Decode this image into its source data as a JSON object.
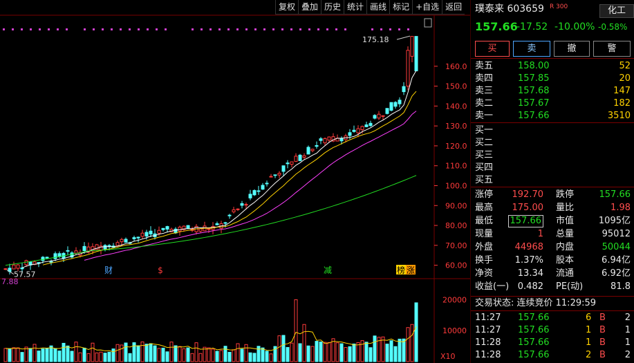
{
  "toolbar": [
    "复权",
    "叠加",
    "历史",
    "统计",
    "画线",
    "标记",
    "+自选",
    "返回"
  ],
  "header": {
    "name_code": "璞泰来 603659",
    "badge": "R",
    "index": "300",
    "sector": "化工",
    "price": "157.66",
    "change": "-17.52",
    "pct": "-10.00%",
    "sector_pct": "-0.58%"
  },
  "buttons": {
    "buy": "买",
    "sell": "卖",
    "cancel": "撤",
    "alert": "警"
  },
  "asks": [
    {
      "label": "卖五",
      "price": "158.00",
      "vol": "52"
    },
    {
      "label": "卖四",
      "price": "157.85",
      "vol": "20"
    },
    {
      "label": "卖三",
      "price": "157.68",
      "vol": "147"
    },
    {
      "label": "卖二",
      "price": "157.67",
      "vol": "182"
    },
    {
      "label": "卖一",
      "price": "157.66",
      "vol": "3510"
    }
  ],
  "bids": [
    "买一",
    "买二",
    "买三",
    "买四",
    "买五"
  ],
  "stats": [
    [
      "涨停",
      "192.70",
      "跌停",
      "157.66"
    ],
    [
      "最高",
      "175.00",
      "量比",
      "1.98"
    ],
    [
      "最低",
      "157.66",
      "市值",
      "1095亿"
    ],
    [
      "现量",
      "1",
      "总量",
      "95012"
    ],
    [
      "外盘",
      "44968",
      "内盘",
      "50044"
    ],
    [
      "换手",
      "1.37%",
      "股本",
      "6.94亿"
    ],
    [
      "净资",
      "13.34",
      "流通",
      "6.92亿"
    ],
    [
      "收益(一)",
      "0.482",
      "PE(动)",
      "81.8"
    ]
  ],
  "trade_status": "交易状态: 连续竞价 11:29:59",
  "ticks": [
    {
      "time": "11:27",
      "price": "157.66",
      "vol": "6",
      "side": "B",
      "n": "2"
    },
    {
      "time": "11:27",
      "price": "157.66",
      "vol": "1",
      "side": "B",
      "n": "1"
    },
    {
      "time": "11:28",
      "price": "157.66",
      "vol": "1",
      "side": "B",
      "n": "1"
    },
    {
      "time": "11:28",
      "price": "157.66",
      "vol": "2",
      "side": "B",
      "n": "2"
    }
  ],
  "chart": {
    "price_ticks": [
      "160.0",
      "150.0",
      "140.0",
      "130.0",
      "120.0",
      "110.0",
      "100.0",
      "90.00",
      "80.00",
      "70.00",
      "60.00"
    ],
    "vol_ticks": [
      "20000",
      "10000"
    ],
    "vol_unit": "X10",
    "high_label": "175.18",
    "low_label": "57.57",
    "vol_left_label": "7.88",
    "events": [
      "财",
      "$",
      "减",
      "榜",
      "涨"
    ]
  },
  "colors": {
    "up": "#ff3b3b",
    "down": "#54ffff",
    "ma5": "#ffffff",
    "ma10": "#ffd200",
    "ma20": "#ff40ff",
    "ma60": "#22dd22"
  }
}
